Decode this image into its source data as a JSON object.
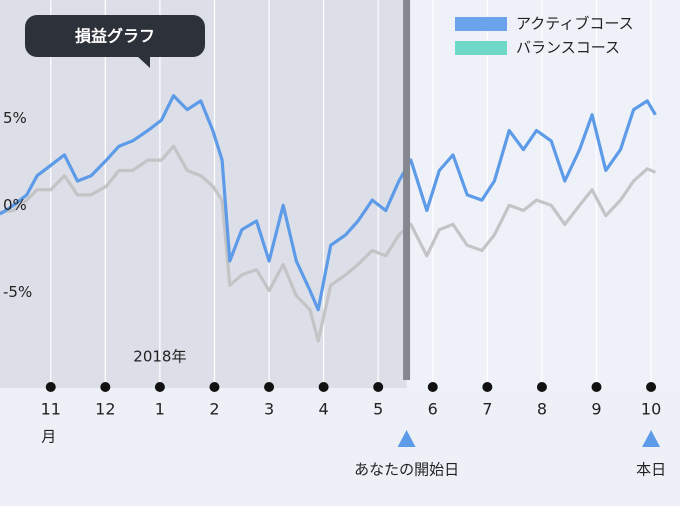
{
  "chart_data": {
    "type": "line",
    "badge": "損益グラフ",
    "x": [
      -0.93,
      -0.68,
      -0.44,
      -0.25,
      0,
      0.25,
      0.49,
      0.74,
      1.02,
      1.25,
      1.5,
      1.78,
      2.03,
      2.25,
      2.5,
      2.75,
      2.97,
      3.14,
      3.28,
      3.5,
      3.77,
      4.0,
      4.26,
      4.5,
      4.75,
      4.9,
      5.13,
      5.4,
      5.63,
      5.89,
      6.14,
      6.38,
      6.6,
      6.89,
      7.12,
      7.37,
      7.63,
      7.9,
      8.13,
      8.4,
      8.66,
      8.9,
      9.17,
      9.42,
      9.69,
      9.92,
      10.17,
      10.44,
      10.68,
      10.93,
      11.08
    ],
    "series": [
      {
        "name": "アクティブコース",
        "color": "#6aa3ea",
        "line_color": "#5d9be8",
        "values": [
          -0.5,
          0,
          0.6,
          1.7,
          2.3,
          2.9,
          1.4,
          1.7,
          2.6,
          3.4,
          3.7,
          4.3,
          4.9,
          6.3,
          5.5,
          6.0,
          4.3,
          2.6,
          -3.2,
          -1.4,
          -0.9,
          -3.2,
          0,
          -3.2,
          -4.9,
          -6.0,
          -2.3,
          -1.7,
          -0.9,
          0.3,
          -0.3,
          1.4,
          2.6,
          -0.3,
          2.0,
          2.9,
          0.6,
          0.3,
          1.4,
          4.3,
          3.2,
          4.3,
          3.7,
          1.4,
          3.2,
          5.2,
          2.0,
          3.2,
          5.5,
          6.0,
          5.2
        ]
      },
      {
        "name": "バランスコース",
        "color": "#6fd8c9",
        "line_color": "#c4c4c6",
        "values": [
          -0.4,
          -0.3,
          0.3,
          0.9,
          0.9,
          1.7,
          0.6,
          0.6,
          1.1,
          2.0,
          2.0,
          2.6,
          2.6,
          3.4,
          2.0,
          1.7,
          1.1,
          0.3,
          -4.6,
          -4.0,
          -3.7,
          -4.9,
          -3.4,
          -5.2,
          -6.0,
          -7.8,
          -4.6,
          -4.0,
          -3.4,
          -2.6,
          -2.9,
          -1.7,
          -1.1,
          -2.9,
          -1.4,
          -1.1,
          -2.3,
          -2.6,
          -1.7,
          0,
          -0.3,
          0.3,
          0,
          -1.1,
          0,
          0.9,
          -0.6,
          0.3,
          1.4,
          2.1,
          1.9
        ]
      }
    ],
    "xlim": [
      -0.93,
      11.53
    ],
    "ylim": [
      -10.5,
      11.8
    ],
    "yticks": [
      {
        "value": 5,
        "label": "5%"
      },
      {
        "value": 0,
        "label": "0%"
      },
      {
        "value": -5,
        "label": "-5%"
      }
    ],
    "xticks": [
      {
        "value": 0,
        "label": "11"
      },
      {
        "value": 1,
        "label": "12"
      },
      {
        "value": 2,
        "label": "1"
      },
      {
        "value": 3,
        "label": "2"
      },
      {
        "value": 4,
        "label": "3"
      },
      {
        "value": 5,
        "label": "4"
      },
      {
        "value": 6,
        "label": "5"
      },
      {
        "value": 7,
        "label": "6"
      },
      {
        "value": 8,
        "label": "7"
      },
      {
        "value": 9,
        "label": "8"
      },
      {
        "value": 10,
        "label": "9"
      },
      {
        "value": 11,
        "label": "10"
      }
    ],
    "month_unit": "月",
    "year_label": "2018年",
    "year_x": 2,
    "start_label": "あなたの開始日",
    "start_x": 6.52,
    "today_label": "本日",
    "today_x": 11,
    "grid": true,
    "legend": "top-right"
  }
}
